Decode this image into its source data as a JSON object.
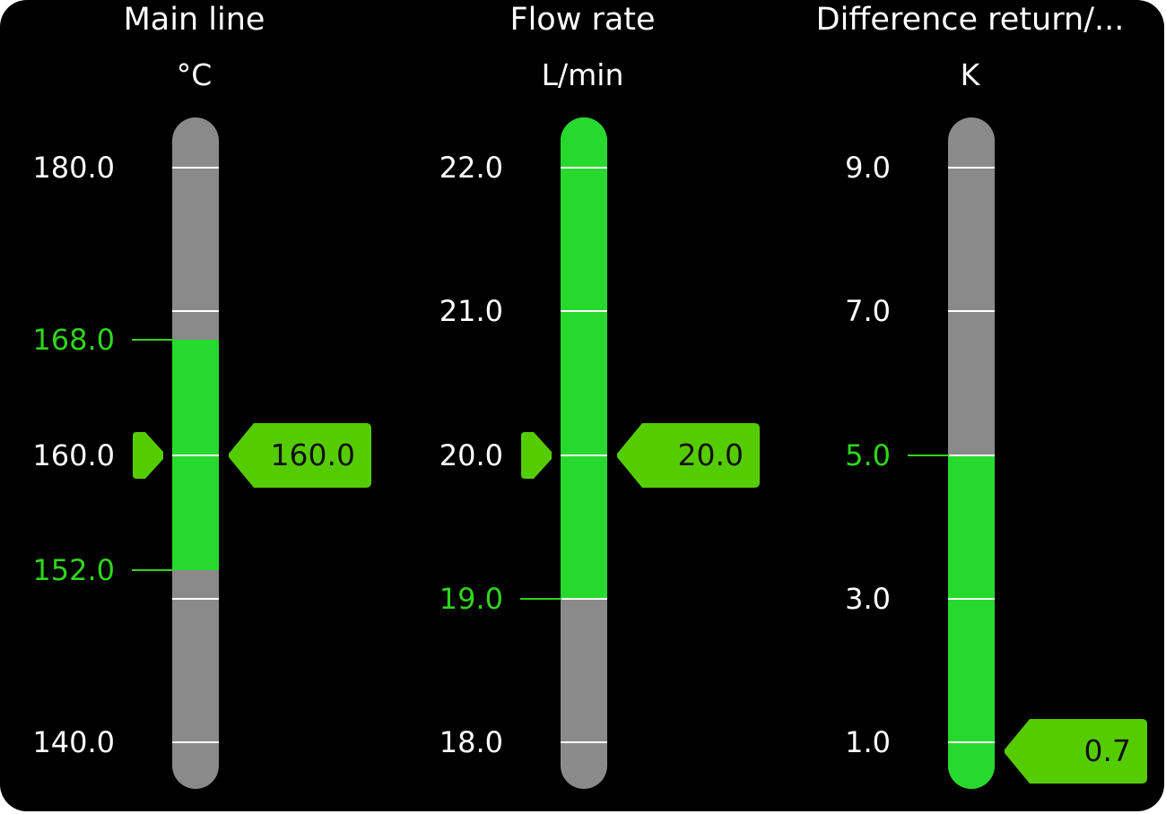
{
  "colors": {
    "track": "#8a8a8a",
    "band": "#27d92e",
    "pointer": "#55cc00",
    "limit_text": "#2fd61a",
    "tick": "#ffffff"
  },
  "gauges": [
    {
      "title": "Main line",
      "unit": "°C",
      "min": 140,
      "max": 180,
      "ticks": [
        {
          "value": 180,
          "label": "180.0"
        },
        {
          "value": 170,
          "label": ""
        },
        {
          "value": 160,
          "label": "160.0"
        },
        {
          "value": 150,
          "label": ""
        },
        {
          "value": 140,
          "label": "140.0"
        }
      ],
      "limits": [
        {
          "value": 168,
          "label": "168.0"
        },
        {
          "value": 152,
          "label": "152.0"
        }
      ],
      "band": [
        152,
        168
      ],
      "value": 160,
      "value_label": "160.0",
      "marker": true
    },
    {
      "title": "Flow rate",
      "unit": "L/min",
      "min": 18,
      "max": 22,
      "ticks": [
        {
          "value": 22,
          "label": "22.0"
        },
        {
          "value": 21,
          "label": "21.0"
        },
        {
          "value": 20,
          "label": "20.0"
        },
        {
          "value": 19,
          "label": ""
        },
        {
          "value": 18,
          "label": "18.0"
        }
      ],
      "limits": [
        {
          "value": 19,
          "label": "19.0"
        }
      ],
      "band": [
        19,
        null
      ],
      "value": 20,
      "value_label": "20.0",
      "marker": true
    },
    {
      "title": "Difference return/...",
      "unit": "K",
      "min": 1,
      "max": 9,
      "ticks": [
        {
          "value": 9,
          "label": "9.0"
        },
        {
          "value": 7,
          "label": "7.0"
        },
        {
          "value": 5,
          "label": ""
        },
        {
          "value": 3,
          "label": "3.0"
        },
        {
          "value": 1,
          "label": "1.0"
        }
      ],
      "limits": [
        {
          "value": 5,
          "label": "5.0"
        }
      ],
      "band": [
        null,
        5
      ],
      "value": 0.7,
      "value_label": "0.7",
      "marker": false
    }
  ]
}
